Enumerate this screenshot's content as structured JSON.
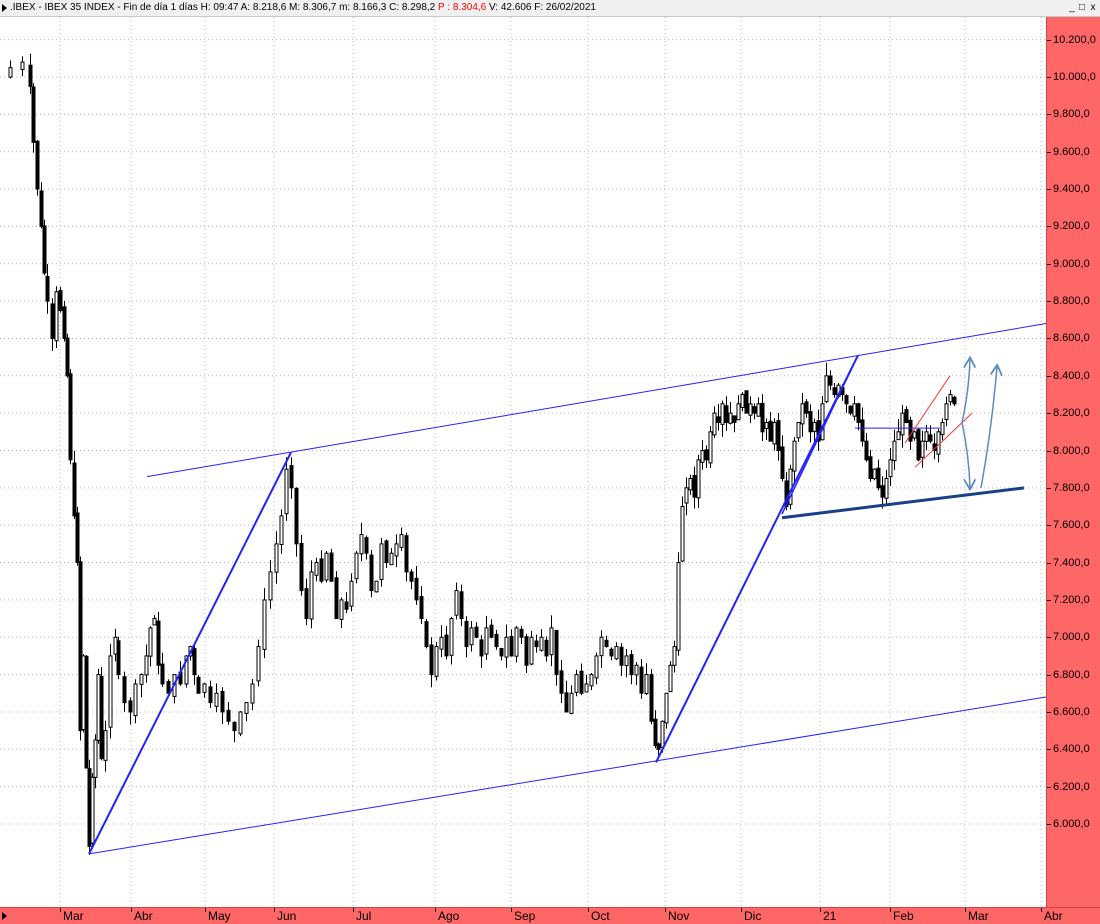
{
  "window": {
    "title_prefix": ".IBEX - IBEX 35 INDEX - Fin de día 1 días  H: 09:47  A: 8.218,6  M: 8.306,7  m: 8.166,3  C: 8.298,2  ",
    "title_p": "P : 8.304,6",
    "title_suffix": "  V: 42.606  F: 26/02/2021",
    "minimize": "_",
    "maximize": "□",
    "close": "x"
  },
  "colors": {
    "axis_bg": "#ff6666",
    "trendline_thin": "#2222ff",
    "trendline_thick": "#1a3f8a",
    "channel_red": "#ff3333",
    "projection_arrow": "#5b8bc0"
  },
  "chart_data": {
    "type": "candlestick",
    "title": "IBEX 35 INDEX",
    "xlabel": "",
    "ylabel": "",
    "ylim": [
      5600,
      10400
    ],
    "y_ticks": [
      "6.000,0",
      "6.200,0",
      "6.400,0",
      "6.600,0",
      "6.800,0",
      "7.000,0",
      "7.200,0",
      "7.400,0",
      "7.600,0",
      "7.800,0",
      "8.000,0",
      "8.200,0",
      "8.400,0",
      "8.600,0",
      "8.800,0",
      "9.000,0",
      "9.200,0",
      "9.400,0",
      "9.600,0",
      "9.800,0",
      "10.000,0",
      "10.200,0"
    ],
    "x_labels": [
      "Mar",
      "Abr",
      "May",
      "Jun",
      "Jul",
      "Ago",
      "Sep",
      "Oct",
      "Nov",
      "Dic",
      "21",
      "Feb",
      "Mar",
      "Abr"
    ],
    "grid": true,
    "price_path": [
      [
        3,
        10000
      ],
      [
        10,
        10050
      ],
      [
        22,
        10080
      ],
      [
        30,
        9950
      ],
      [
        33,
        9650
      ],
      [
        37,
        9400
      ],
      [
        41,
        9200
      ],
      [
        44,
        8950
      ],
      [
        47,
        8800
      ],
      [
        52,
        8600
      ],
      [
        56,
        8850
      ],
      [
        60,
        8750
      ],
      [
        64,
        8600
      ],
      [
        67,
        8400
      ],
      [
        70,
        7950
      ],
      [
        74,
        7650
      ],
      [
        77,
        7400
      ],
      [
        80,
        6500
      ],
      [
        83,
        6900
      ],
      [
        86,
        6300
      ],
      [
        89,
        5880
      ],
      [
        92,
        6250
      ],
      [
        95,
        6450
      ],
      [
        98,
        6800
      ],
      [
        101,
        6350
      ],
      [
        105,
        6500
      ],
      [
        110,
        6900
      ],
      [
        115,
        7000
      ],
      [
        118,
        6800
      ],
      [
        124,
        6650
      ],
      [
        130,
        6600
      ],
      [
        135,
        6750
      ],
      [
        141,
        6800
      ],
      [
        146,
        6900
      ],
      [
        150,
        7050
      ],
      [
        154,
        7100
      ],
      [
        158,
        6850
      ],
      [
        162,
        6750
      ],
      [
        168,
        6700
      ],
      [
        174,
        6800
      ],
      [
        180,
        6750
      ],
      [
        186,
        6900
      ],
      [
        190,
        6950
      ],
      [
        194,
        6800
      ],
      [
        198,
        6700
      ],
      [
        204,
        6750
      ],
      [
        210,
        6650
      ],
      [
        216,
        6700
      ],
      [
        222,
        6600
      ],
      [
        228,
        6550
      ],
      [
        234,
        6500
      ],
      [
        240,
        6600
      ],
      [
        246,
        6650
      ],
      [
        252,
        6750
      ],
      [
        258,
        6950
      ],
      [
        264,
        7200
      ],
      [
        270,
        7350
      ],
      [
        276,
        7500
      ],
      [
        281,
        7650
      ],
      [
        286,
        7900
      ],
      [
        291,
        7800
      ],
      [
        296,
        7500
      ],
      [
        301,
        7250
      ],
      [
        306,
        7100
      ],
      [
        311,
        7350
      ],
      [
        316,
        7400
      ],
      [
        321,
        7300
      ],
      [
        326,
        7450
      ],
      [
        331,
        7300
      ],
      [
        336,
        7100
      ],
      [
        341,
        7200
      ],
      [
        346,
        7150
      ],
      [
        351,
        7300
      ],
      [
        356,
        7450
      ],
      [
        361,
        7550
      ],
      [
        366,
        7450
      ],
      [
        371,
        7250
      ],
      [
        376,
        7300
      ],
      [
        381,
        7500
      ],
      [
        386,
        7400
      ],
      [
        391,
        7450
      ],
      [
        396,
        7500
      ],
      [
        401,
        7550
      ],
      [
        406,
        7350
      ],
      [
        411,
        7300
      ],
      [
        416,
        7200
      ],
      [
        421,
        7100
      ],
      [
        426,
        6950
      ],
      [
        431,
        6800
      ],
      [
        436,
        6950
      ],
      [
        441,
        7000
      ],
      [
        446,
        6900
      ],
      [
        451,
        7100
      ],
      [
        456,
        7250
      ],
      [
        461,
        7100
      ],
      [
        466,
        6950
      ],
      [
        471,
        7050
      ],
      [
        476,
        7000
      ],
      [
        481,
        6900
      ],
      [
        486,
        7050
      ],
      [
        491,
        7000
      ],
      [
        496,
        6950
      ],
      [
        501,
        6900
      ],
      [
        506,
        7000
      ],
      [
        511,
        6900
      ],
      [
        516,
        7050
      ],
      [
        521,
        7000
      ],
      [
        526,
        6850
      ],
      [
        531,
        7000
      ],
      [
        536,
        6950
      ],
      [
        541,
        7000
      ],
      [
        546,
        6900
      ],
      [
        551,
        7050
      ],
      [
        556,
        6800
      ],
      [
        561,
        6700
      ],
      [
        566,
        6600
      ],
      [
        571,
        6700
      ],
      [
        576,
        6800
      ],
      [
        581,
        6700
      ],
      [
        586,
        6750
      ],
      [
        591,
        6800
      ],
      [
        596,
        6900
      ],
      [
        601,
        7000
      ],
      [
        606,
        6950
      ],
      [
        611,
        6900
      ],
      [
        616,
        6950
      ],
      [
        621,
        6850
      ],
      [
        626,
        6900
      ],
      [
        631,
        6800
      ],
      [
        636,
        6850
      ],
      [
        641,
        6700
      ],
      [
        646,
        6800
      ],
      [
        651,
        6550
      ],
      [
        655,
        6420
      ],
      [
        658,
        6400
      ],
      [
        662,
        6550
      ],
      [
        666,
        6700
      ],
      [
        670,
        6850
      ],
      [
        674,
        6950
      ],
      [
        678,
        7400
      ],
      [
        682,
        7700
      ],
      [
        686,
        7800
      ],
      [
        690,
        7850
      ],
      [
        694,
        7750
      ],
      [
        698,
        7950
      ],
      [
        702,
        8000
      ],
      [
        706,
        7950
      ],
      [
        710,
        8100
      ],
      [
        714,
        8200
      ],
      [
        718,
        8150
      ],
      [
        722,
        8250
      ],
      [
        726,
        8150
      ],
      [
        730,
        8200
      ],
      [
        734,
        8150
      ],
      [
        738,
        8250
      ],
      [
        742,
        8300
      ],
      [
        746,
        8200
      ],
      [
        750,
        8250
      ],
      [
        754,
        8200
      ],
      [
        758,
        8250
      ],
      [
        762,
        8100
      ],
      [
        766,
        8150
      ],
      [
        770,
        8050
      ],
      [
        774,
        8150
      ],
      [
        778,
        8000
      ],
      [
        782,
        7850
      ],
      [
        786,
        7700
      ],
      [
        790,
        7900
      ],
      [
        794,
        8050
      ],
      [
        798,
        8150
      ],
      [
        802,
        8250
      ],
      [
        806,
        8200
      ],
      [
        810,
        8100
      ],
      [
        814,
        8150
      ],
      [
        818,
        8050
      ],
      [
        822,
        8250
      ],
      [
        826,
        8400
      ],
      [
        830,
        8350
      ],
      [
        834,
        8300
      ],
      [
        838,
        8350
      ],
      [
        842,
        8300
      ],
      [
        846,
        8250
      ],
      [
        850,
        8200
      ],
      [
        854,
        8250
      ],
      [
        858,
        8150
      ],
      [
        862,
        8050
      ],
      [
        866,
        7950
      ],
      [
        870,
        7850
      ],
      [
        874,
        7900
      ],
      [
        878,
        7800
      ],
      [
        882,
        7750
      ],
      [
        886,
        7850
      ],
      [
        890,
        7950
      ],
      [
        894,
        8050
      ],
      [
        898,
        8100
      ],
      [
        902,
        8200
      ],
      [
        906,
        8150
      ],
      [
        910,
        8050
      ],
      [
        914,
        8100
      ],
      [
        918,
        7950
      ],
      [
        922,
        8050
      ],
      [
        926,
        8100
      ],
      [
        930,
        8050
      ],
      [
        934,
        8000
      ],
      [
        938,
        8100
      ],
      [
        942,
        8150
      ],
      [
        946,
        8250
      ],
      [
        950,
        8300
      ],
      [
        954,
        8250
      ]
    ],
    "annotations": {
      "upper_channel": [
        [
          147,
          7860
        ],
        [
          1046,
          8680
        ]
      ],
      "lower_channel": [
        [
          89,
          5840
        ],
        [
          1046,
          6680
        ]
      ],
      "rise_1": [
        [
          89,
          5840
        ],
        [
          291,
          7990
        ]
      ],
      "rise_2": [
        [
          656,
          6330
        ],
        [
          858,
          8510
        ]
      ],
      "rise_3": [
        [
          782,
          7660
        ],
        [
          858,
          8510
        ]
      ],
      "support_line": [
        [
          782,
          7640
        ],
        [
          1024,
          7800
        ]
      ],
      "flag_level": [
        [
          855,
          8120
        ],
        [
          940,
          8120
        ]
      ],
      "red_channel_upper": [
        [
          905,
          8040
        ],
        [
          950,
          8400
        ]
      ],
      "red_channel_lower": [
        [
          915,
          7910
        ],
        [
          972,
          8200
        ]
      ],
      "projection_left": [
        [
          [
            962,
            8150
          ],
          [
            970,
            8490
          ]
        ],
        [
          [
            962,
            8150
          ],
          [
            970,
            7800
          ]
        ]
      ],
      "projection_right": [
        [
          [
            981,
            7800
          ],
          [
            997,
            8450
          ]
        ]
      ]
    }
  }
}
